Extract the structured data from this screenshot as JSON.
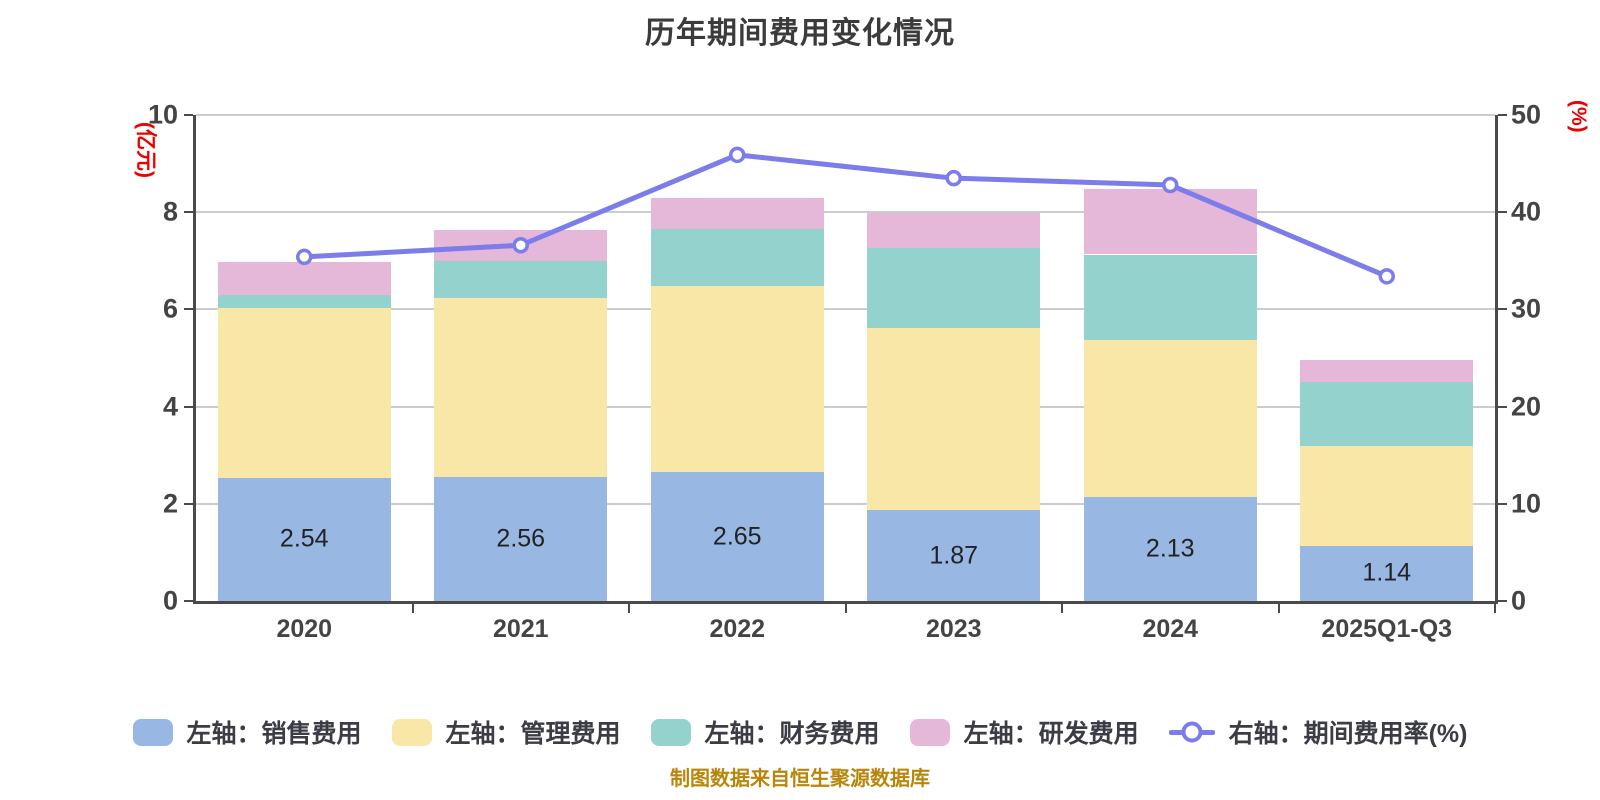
{
  "chart_data": {
    "type": "bar",
    "subtype": "stacked-bars-with-line-overlay",
    "title": "历年期间费用变化情况",
    "categories": [
      "2020",
      "2021",
      "2022",
      "2023",
      "2024",
      "2025Q1-Q3"
    ],
    "series": [
      {
        "name": "左轴：销售费用",
        "color": "#99b7e3",
        "values": [
          2.54,
          2.56,
          2.65,
          1.87,
          2.13,
          1.14
        ]
      },
      {
        "name": "左轴：管理费用",
        "color": "#f9e7a8",
        "values": [
          3.48,
          3.67,
          3.83,
          3.74,
          3.25,
          2.04
        ]
      },
      {
        "name": "左轴：财务费用",
        "color": "#93d2cd",
        "values": [
          0.28,
          0.76,
          1.17,
          1.65,
          1.75,
          1.32
        ]
      },
      {
        "name": "左轴：研发费用",
        "color": "#e5b7d9",
        "values": [
          0.67,
          0.64,
          0.65,
          0.73,
          1.34,
          0.45
        ]
      }
    ],
    "bar_labels": [
      "2.54",
      "2.56",
      "2.65",
      "1.87",
      "2.13",
      "1.14"
    ],
    "line_series": {
      "name": "右轴：期间费用率(%)",
      "color": "#7c7ceb",
      "values": [
        35.4,
        36.6,
        45.9,
        43.5,
        42.8,
        33.4
      ]
    },
    "left_axis": {
      "unit": "(亿元)",
      "min": 0,
      "max": 10,
      "ticks": [
        "0",
        "2",
        "4",
        "6",
        "8",
        "10"
      ]
    },
    "right_axis": {
      "unit": "(%)",
      "min": 0,
      "max": 50,
      "ticks": [
        "0",
        "10",
        "20",
        "30",
        "40",
        "50"
      ]
    },
    "grid": "horizontal",
    "legend_position": "bottom"
  },
  "footer": {
    "note": "制图数据来自恒生聚源数据库"
  }
}
